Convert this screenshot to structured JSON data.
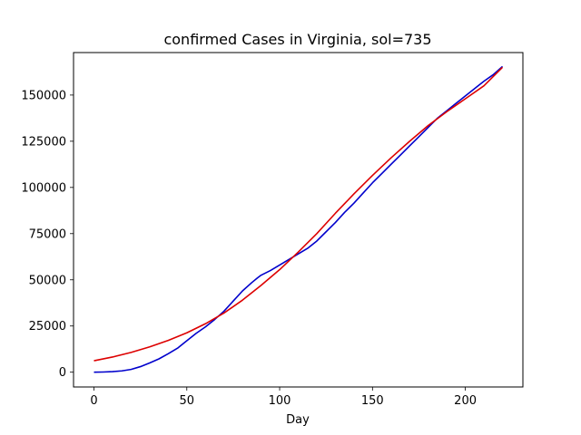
{
  "chart_data": {
    "type": "line",
    "title": "confirmed Cases in Virginia, sol=735",
    "xlabel": "Day",
    "ylabel": "",
    "xlim": [
      -11,
      231
    ],
    "ylim": [
      -8000,
      173000
    ],
    "x_ticks": [
      0,
      50,
      100,
      150,
      200
    ],
    "y_ticks": [
      0,
      25000,
      50000,
      75000,
      100000,
      125000,
      150000
    ],
    "grid": false,
    "legend": "none",
    "series": [
      {
        "color": "#0000cc",
        "x": [
          0,
          5,
          10,
          15,
          20,
          25,
          30,
          35,
          40,
          45,
          50,
          55,
          60,
          65,
          70,
          75,
          80,
          85,
          88,
          90,
          95,
          100,
          105,
          110,
          115,
          120,
          125,
          130,
          135,
          140,
          145,
          150,
          155,
          160,
          165,
          170,
          175,
          180,
          185,
          190,
          195,
          200,
          205,
          210,
          215,
          220
        ],
        "y": [
          0,
          100,
          300,
          700,
          1500,
          3000,
          5000,
          7200,
          10000,
          13000,
          17000,
          21000,
          24500,
          28500,
          33000,
          38500,
          44000,
          48500,
          51000,
          52500,
          55000,
          58000,
          61000,
          64000,
          67000,
          71000,
          76000,
          81000,
          86500,
          91500,
          97000,
          102500,
          107500,
          112500,
          117500,
          122500,
          127500,
          132500,
          137500,
          141500,
          145500,
          149500,
          153500,
          157500,
          161000,
          165500
        ]
      },
      {
        "color": "#dd0000",
        "x": [
          0,
          10,
          20,
          30,
          40,
          50,
          60,
          70,
          80,
          90,
          100,
          110,
          120,
          130,
          140,
          150,
          160,
          170,
          180,
          190,
          200,
          210,
          220
        ],
        "y": [
          6200,
          8200,
          10700,
          13700,
          17200,
          21300,
          26200,
          32000,
          39000,
          47000,
          55500,
          65000,
          75000,
          86000,
          96500,
          106500,
          116000,
          125000,
          133500,
          141000,
          148000,
          155000,
          165000
        ]
      }
    ]
  }
}
